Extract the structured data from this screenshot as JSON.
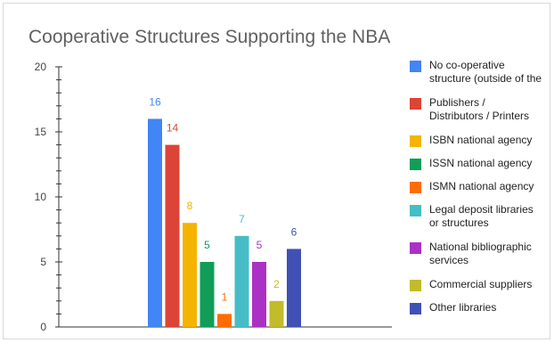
{
  "chart_data": {
    "type": "bar",
    "title": "Cooperative Structures Supporting the NBA",
    "xlabel": "",
    "ylabel": "",
    "ylim": [
      0,
      20
    ],
    "yticks": [
      0,
      5,
      10,
      15,
      20
    ],
    "grid": false,
    "legend_position": "right",
    "series": [
      {
        "name": "No co-operative\nstructure (outside of the",
        "value": 16,
        "color": "#4285f4"
      },
      {
        "name": "Publishers /\nDistributors / Printers",
        "value": 14,
        "color": "#db4437"
      },
      {
        "name": "ISBN national agency",
        "value": 8,
        "color": "#f4b400"
      },
      {
        "name": "ISSN national agency",
        "value": 5,
        "color": "#0f9d58"
      },
      {
        "name": "ISMN national agency",
        "value": 1,
        "color": "#ff6d00"
      },
      {
        "name": "Legal deposit libraries\nor structures",
        "value": 7,
        "color": "#46bdc6"
      },
      {
        "name": "National bibliographic\nservices",
        "value": 5,
        "color": "#ab30c4"
      },
      {
        "name": "Commercial suppliers",
        "value": 2,
        "color": "#c2bb2a"
      },
      {
        "name": "Other libraries",
        "value": 6,
        "color": "#3f51b5"
      }
    ]
  }
}
